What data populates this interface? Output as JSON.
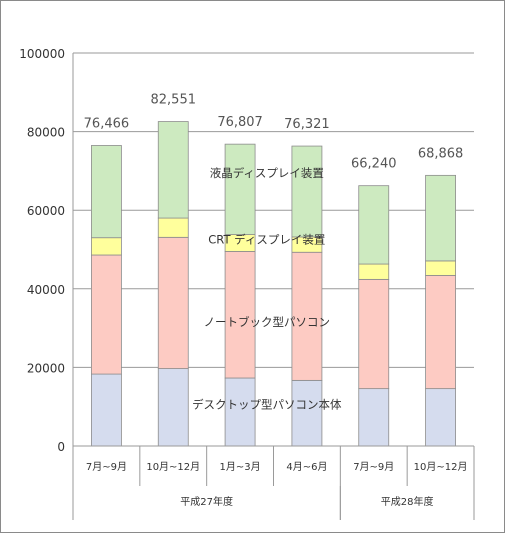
{
  "chart_data": {
    "type": "bar",
    "stacked": true,
    "categories": [
      "7月~9月",
      "10月~12月",
      "1月~3月",
      "4月~6月",
      "7月~9月",
      "10月~12月"
    ],
    "groups": [
      {
        "label": "平成27年度",
        "categories": [
          0,
          1,
          2,
          3
        ]
      },
      {
        "label": "平成28年度",
        "categories": [
          4,
          5
        ]
      }
    ],
    "yticks": [
      "100000",
      "80000",
      "60000",
      "40000",
      "20000",
      "0"
    ],
    "ylim": [
      0,
      100000
    ],
    "series": [
      {
        "name": "デスクトップ型パソコン本体",
        "color": "#d5dcee",
        "values": [
          18300,
          19700,
          17300,
          16700,
          14600,
          14600
        ]
      },
      {
        "name": "ノートブック型パソコン",
        "color": "#fdcbc3",
        "values": [
          30300,
          33400,
          32200,
          32600,
          27800,
          28800
        ]
      },
      {
        "name": "CRT ディスプレイ装置",
        "color": "#ffff9c",
        "values": [
          4400,
          4900,
          4300,
          3900,
          3900,
          3700
        ]
      },
      {
        "name": "液晶ディスプレイ装置",
        "color": "#cdeac0",
        "values": [
          23466,
          24551,
          23007,
          23121,
          19940,
          21768
        ]
      }
    ],
    "totals": [
      "76,466",
      "82,551",
      "76,807",
      "76,321",
      "66,240",
      "68,868"
    ],
    "highlight_color": "#e8281e",
    "highlight_index": 5,
    "grid": true
  }
}
